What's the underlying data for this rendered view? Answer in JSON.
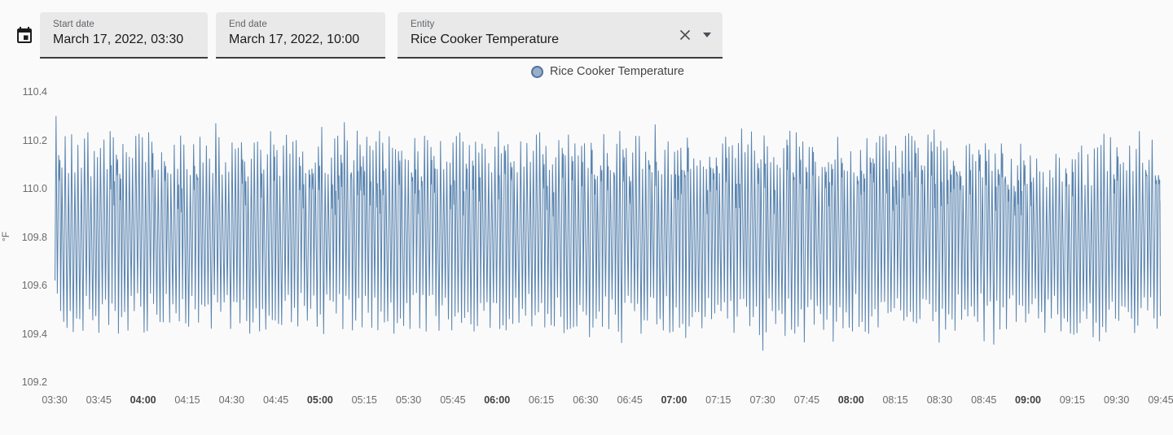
{
  "toolbar": {
    "calendar_icon": "calendar-icon",
    "start_date": {
      "label": "Start date",
      "value": "March 17, 2022, 03:30"
    },
    "end_date": {
      "label": "End date",
      "value": "March 17, 2022, 10:00"
    },
    "entity": {
      "label": "Entity",
      "value": "Rice Cooker Temperature",
      "clear_icon": "close-x",
      "dropdown_icon": "caret-down"
    }
  },
  "legend": {
    "items": [
      {
        "label": "Rice Cooker Temperature",
        "dot_fill": "#98aec9",
        "dot_border": "#4f749c"
      }
    ]
  },
  "chart_data": {
    "type": "line",
    "entity": "Rice Cooker Temperature",
    "ylabel": "°F",
    "xlabel": "",
    "grid": false,
    "legend_position": "top-center",
    "line_color": "#4a78a8",
    "ylim": [
      109.2,
      110.4
    ],
    "yticks": [
      "110.4",
      "110.2",
      "110.0",
      "109.8",
      "109.6",
      "109.4",
      "109.2"
    ],
    "xticks": [
      "03:30",
      "03:45",
      "04:00",
      "04:15",
      "04:30",
      "04:45",
      "05:00",
      "05:15",
      "05:30",
      "05:45",
      "06:00",
      "06:15",
      "06:30",
      "06:45",
      "07:00",
      "07:15",
      "07:30",
      "07:45",
      "08:00",
      "08:15",
      "08:30",
      "08:45",
      "09:00",
      "09:15",
      "09:30",
      "09:45"
    ],
    "bold_xticks": [
      "04:00",
      "05:00",
      "06:00",
      "07:00",
      "08:00",
      "09:00"
    ],
    "signal": {
      "description": "Very dense thermostat-style oscillation of the rice cooker temperature; roughly one heat/cool cycle per minute from 03:30 to 09:45.",
      "cycles": 345,
      "peak_range": [
        110.05,
        110.24
      ],
      "trough_range": [
        109.4,
        109.57
      ],
      "shoulder_range": [
        109.88,
        110.08
      ],
      "first_peak": 110.3,
      "max_point": {
        "time": "03:30",
        "value": 110.3
      },
      "min_point": {
        "time": "07:30",
        "value": 109.33,
        "fraction": 0.637
      },
      "late_damping": {
        "from_fraction": 0.8,
        "to_fraction": 0.94,
        "peak_offset": -0.045
      }
    }
  }
}
